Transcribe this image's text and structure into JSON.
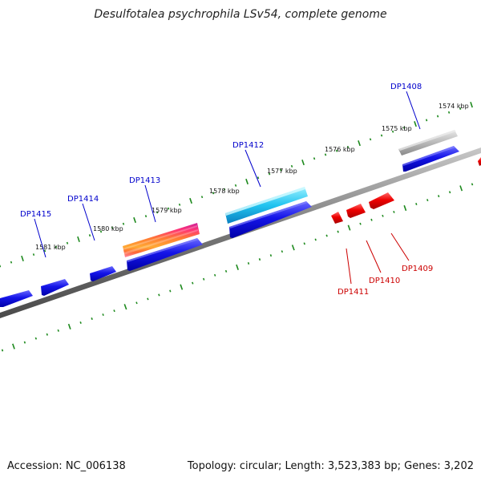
{
  "title": "Desulfotalea psychrophila LSv54, complete genome",
  "footer": {
    "accession": "Accession: NC_006138",
    "summary": "Topology: circular; Length: 3,523,383 bp; Genes: 3,202"
  },
  "colors": {
    "backbone": "#777777",
    "tick": "#1e8a1e",
    "forward_label": "#0000cc",
    "reverse_label": "#cc0000",
    "forward_gene": "#1212e6",
    "reverse_gene": "#e60000",
    "pseudo_gene": "#aaaaaa"
  },
  "scale_labels": [
    "1574 kbp",
    "1575 kbp",
    "1576 kbp",
    "1577 kbp",
    "1578 kbp",
    "1579 kbp",
    "1580 kbp",
    "1581 kbp"
  ],
  "forward_genes": [
    "DP1408",
    "DP1412",
    "DP1413",
    "DP1414",
    "DP1415"
  ],
  "reverse_genes": [
    "DP1409",
    "DP1410",
    "DP1411"
  ]
}
